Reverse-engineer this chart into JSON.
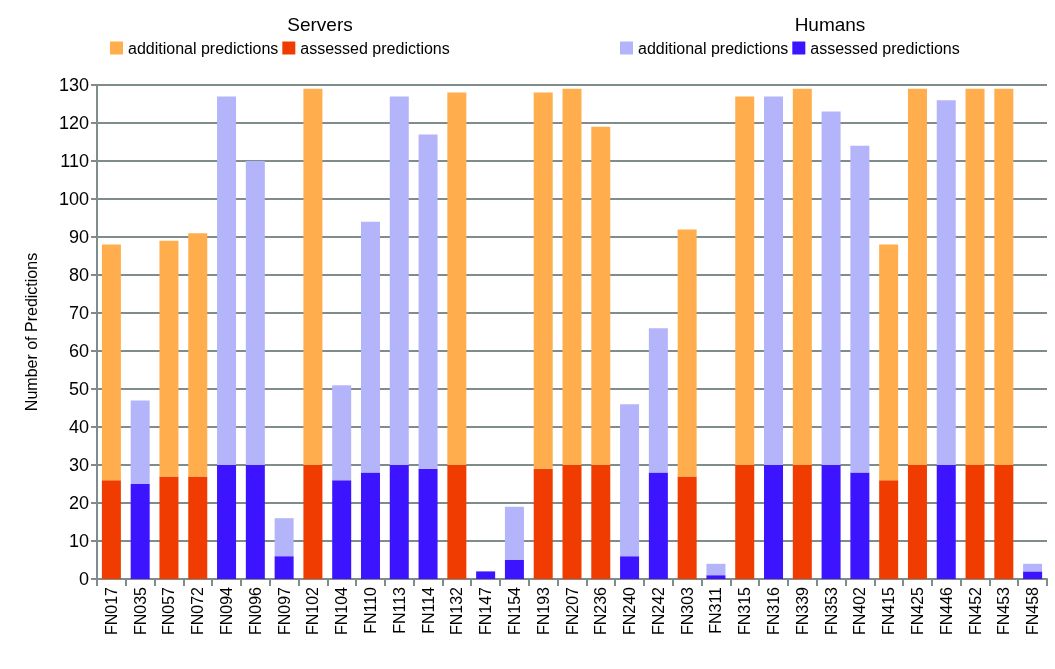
{
  "chart_data": {
    "type": "bar",
    "stacked": true,
    "ylabel": "Number of Predictions",
    "annotations": [
      "Servers",
      "Humans"
    ],
    "categories": [
      "FN017",
      "FN035",
      "FN057",
      "FN072",
      "FN094",
      "FN096",
      "FN097",
      "FN102",
      "FN104",
      "FN110",
      "FN113",
      "FN114",
      "FN132",
      "FN147",
      "FN154",
      "FN193",
      "FN207",
      "FN236",
      "FN240",
      "FN242",
      "FN303",
      "FN311",
      "FN315",
      "FN316",
      "FN339",
      "FN353",
      "FN402",
      "FN415",
      "FN425",
      "FN446",
      "FN452",
      "FN453",
      "FN458"
    ],
    "series": [
      {
        "name": "assessed predictions",
        "color": "#f03c00",
        "values": [
          26,
          null,
          27,
          27,
          null,
          null,
          null,
          30,
          null,
          null,
          null,
          null,
          30,
          null,
          null,
          29,
          30,
          30,
          null,
          null,
          27,
          null,
          30,
          null,
          30,
          null,
          null,
          26,
          30,
          null,
          30,
          30,
          null
        ]
      },
      {
        "name": "additional predictions",
        "color": "#ffad4d",
        "values": [
          62,
          null,
          62,
          64,
          null,
          null,
          null,
          99,
          null,
          null,
          null,
          null,
          98,
          null,
          null,
          99,
          99,
          89,
          null,
          null,
          65,
          null,
          97,
          null,
          99,
          null,
          null,
          62,
          99,
          null,
          99,
          99,
          null
        ]
      },
      {
        "name": "assessed predictions",
        "color": "#3c14ff",
        "values": [
          null,
          25,
          null,
          null,
          30,
          30,
          6,
          null,
          26,
          28,
          30,
          29,
          null,
          2,
          5,
          null,
          null,
          null,
          6,
          28,
          null,
          1,
          null,
          30,
          null,
          30,
          28,
          null,
          null,
          30,
          null,
          null,
          2
        ]
      },
      {
        "name": "additional predictions",
        "color": "#b4b4fa",
        "values": [
          null,
          22,
          null,
          null,
          97,
          80,
          10,
          null,
          25,
          66,
          97,
          88,
          null,
          null,
          14,
          null,
          null,
          null,
          40,
          38,
          null,
          3,
          null,
          97,
          null,
          93,
          86,
          null,
          null,
          96,
          null,
          null,
          2
        ]
      }
    ],
    "ylim": [
      0,
      130
    ],
    "yticks": [
      0,
      10,
      20,
      30,
      40,
      50,
      60,
      70,
      80,
      90,
      100,
      110,
      120,
      130
    ],
    "grid": "y",
    "legend": "top"
  }
}
